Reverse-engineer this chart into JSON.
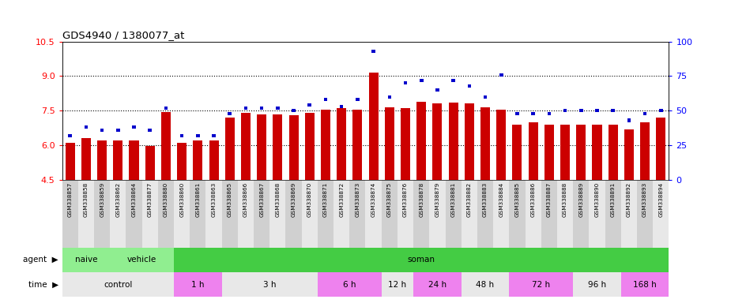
{
  "title": "GDS4940 / 1380077_at",
  "samples": [
    "GSM338857",
    "GSM338858",
    "GSM338859",
    "GSM338862",
    "GSM338864",
    "GSM338877",
    "GSM338880",
    "GSM338860",
    "GSM338861",
    "GSM338863",
    "GSM338865",
    "GSM338866",
    "GSM338867",
    "GSM338868",
    "GSM338869",
    "GSM338870",
    "GSM338871",
    "GSM338872",
    "GSM338873",
    "GSM338874",
    "GSM338875",
    "GSM338876",
    "GSM338878",
    "GSM338879",
    "GSM338881",
    "GSM338882",
    "GSM338883",
    "GSM338884",
    "GSM338885",
    "GSM338886",
    "GSM338887",
    "GSM338888",
    "GSM338889",
    "GSM338890",
    "GSM338891",
    "GSM338892",
    "GSM338893",
    "GSM338894"
  ],
  "red_values": [
    6.1,
    6.3,
    6.2,
    6.2,
    6.2,
    5.95,
    7.45,
    6.1,
    6.2,
    6.2,
    7.2,
    7.4,
    7.35,
    7.35,
    7.3,
    7.4,
    7.55,
    7.6,
    7.55,
    9.15,
    7.65,
    7.6,
    7.9,
    7.8,
    7.85,
    7.8,
    7.65,
    7.55,
    6.9,
    7.0,
    6.9,
    6.9,
    6.9,
    6.9,
    6.9,
    6.7,
    7.0,
    7.2
  ],
  "blue_percentiles": [
    32,
    38,
    36,
    36,
    38,
    36,
    52,
    32,
    32,
    32,
    48,
    52,
    52,
    52,
    50,
    54,
    58,
    53,
    58,
    93,
    60,
    70,
    72,
    65,
    72,
    68,
    60,
    76,
    48,
    48,
    48,
    50,
    50,
    50,
    50,
    43,
    48,
    50
  ],
  "y_min": 4.5,
  "y_max": 10.5,
  "y_ticks_red": [
    4.5,
    6.0,
    7.5,
    9.0,
    10.5
  ],
  "y_ticks_blue": [
    0,
    25,
    50,
    75,
    100
  ],
  "bar_color": "#cc0000",
  "blue_color": "#0000cc",
  "agent_row_groups": [
    {
      "label": "naive",
      "start": 0,
      "end": 3,
      "color": "#90ee90"
    },
    {
      "label": "vehicle",
      "start": 3,
      "end": 7,
      "color": "#90ee90"
    },
    {
      "label": "soman",
      "start": 7,
      "end": 38,
      "color": "#44cc44"
    }
  ],
  "time_groups": [
    {
      "label": "control",
      "start": 0,
      "end": 7,
      "color": "#e8e8e8"
    },
    {
      "label": "1 h",
      "start": 7,
      "end": 10,
      "color": "#ee82ee"
    },
    {
      "label": "3 h",
      "start": 10,
      "end": 16,
      "color": "#e8e8e8"
    },
    {
      "label": "6 h",
      "start": 16,
      "end": 20,
      "color": "#ee82ee"
    },
    {
      "label": "12 h",
      "start": 20,
      "end": 22,
      "color": "#e8e8e8"
    },
    {
      "label": "24 h",
      "start": 22,
      "end": 25,
      "color": "#ee82ee"
    },
    {
      "label": "48 h",
      "start": 25,
      "end": 28,
      "color": "#e8e8e8"
    },
    {
      "label": "72 h",
      "start": 28,
      "end": 32,
      "color": "#ee82ee"
    },
    {
      "label": "96 h",
      "start": 32,
      "end": 35,
      "color": "#e8e8e8"
    },
    {
      "label": "168 h",
      "start": 35,
      "end": 38,
      "color": "#ee82ee"
    }
  ],
  "dotted_lines": [
    6.0,
    7.5,
    9.0
  ]
}
